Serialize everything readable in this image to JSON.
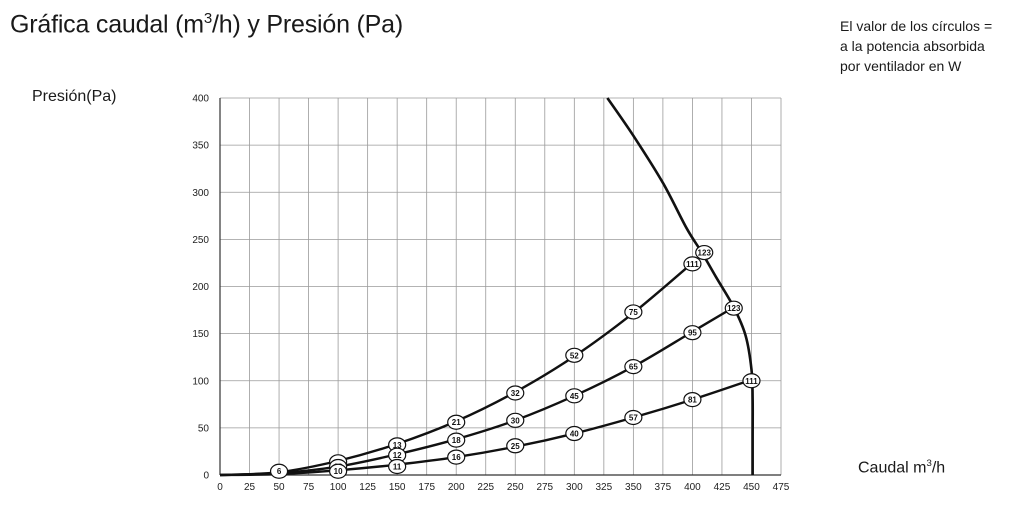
{
  "header": {
    "title_main": "Gráfica caudal (m",
    "title_sup": "3",
    "title_end": "/h) y Presión (Pa)"
  },
  "note": {
    "lines": [
      "El valor de los círculos =",
      "a la potencia absorbida",
      "por ventilador en W"
    ]
  },
  "chart_data": {
    "type": "line",
    "xlabel": {
      "main": "Caudal m",
      "sup": "3",
      "end": "/h"
    },
    "ylabel": "Presión(Pa)",
    "xlim": [
      0,
      475
    ],
    "ylim": [
      0,
      400
    ],
    "xticks": [
      0,
      25,
      50,
      75,
      100,
      125,
      150,
      175,
      200,
      225,
      250,
      275,
      300,
      325,
      350,
      375,
      400,
      425,
      450,
      475
    ],
    "yticks": [
      0,
      50,
      100,
      150,
      200,
      250,
      300,
      350,
      400
    ],
    "grid": true,
    "fan_curve": [
      [
        328,
        400
      ],
      [
        350,
        360
      ],
      [
        375,
        310
      ],
      [
        395,
        262
      ],
      [
        408,
        236
      ],
      [
        420,
        210
      ],
      [
        435,
        178
      ],
      [
        445,
        148
      ],
      [
        450,
        112
      ],
      [
        451,
        80
      ],
      [
        451,
        40
      ],
      [
        451,
        0
      ]
    ],
    "series": [
      {
        "points": [
          [
            0,
            0
          ],
          [
            50,
            3
          ],
          [
            100,
            15
          ],
          [
            150,
            33
          ],
          [
            200,
            57
          ],
          [
            250,
            88
          ],
          [
            300,
            126
          ],
          [
            350,
            172
          ],
          [
            400,
            225
          ]
        ],
        "labels": [
          [
            50,
            4,
            "6"
          ],
          [
            100,
            14,
            "8"
          ],
          [
            150,
            32,
            "13"
          ],
          [
            200,
            56,
            "21"
          ],
          [
            250,
            87,
            "32"
          ],
          [
            300,
            127,
            "52"
          ],
          [
            350,
            173,
            "75"
          ],
          [
            400,
            224,
            "111"
          ],
          [
            410,
            236,
            "123"
          ]
        ]
      },
      {
        "points": [
          [
            0,
            0
          ],
          [
            50,
            2
          ],
          [
            100,
            9
          ],
          [
            150,
            22
          ],
          [
            200,
            38
          ],
          [
            250,
            58
          ],
          [
            300,
            84
          ],
          [
            350,
            115
          ],
          [
            400,
            152
          ],
          [
            435,
            178
          ]
        ],
        "labels": [
          [
            100,
            9,
            "12"
          ],
          [
            150,
            21,
            "12"
          ],
          [
            200,
            37,
            "18"
          ],
          [
            250,
            58,
            "30"
          ],
          [
            300,
            84,
            "45"
          ],
          [
            350,
            115,
            "65"
          ],
          [
            400,
            151,
            "95"
          ],
          [
            435,
            177,
            "123"
          ]
        ]
      },
      {
        "points": [
          [
            0,
            0
          ],
          [
            50,
            1
          ],
          [
            100,
            5
          ],
          [
            150,
            11
          ],
          [
            200,
            19
          ],
          [
            250,
            30
          ],
          [
            300,
            44
          ],
          [
            350,
            61
          ],
          [
            400,
            80
          ],
          [
            450,
            101
          ]
        ],
        "labels": [
          [
            100,
            4,
            "10"
          ],
          [
            150,
            9,
            "11"
          ],
          [
            200,
            19,
            "16"
          ],
          [
            250,
            31,
            "25"
          ],
          [
            300,
            44,
            "40"
          ],
          [
            350,
            61,
            "57"
          ],
          [
            400,
            80,
            "81"
          ],
          [
            450,
            100,
            "111"
          ]
        ]
      }
    ]
  }
}
